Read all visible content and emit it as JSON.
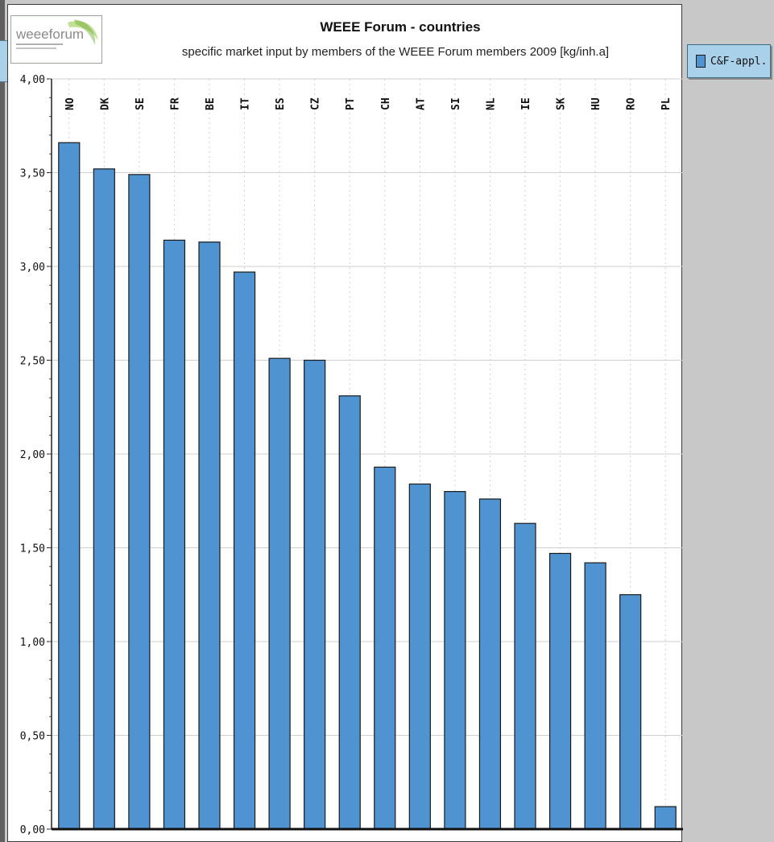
{
  "chart_data": {
    "type": "bar",
    "title": "WEEE Forum - countries",
    "subtitle": "specific market input by members of the WEEE Forum members 2009 [kg/inh.a]",
    "categories": [
      "NO",
      "DK",
      "SE",
      "FR",
      "BE",
      "IT",
      "ES",
      "CZ",
      "PT",
      "CH",
      "AT",
      "SI",
      "NL",
      "IE",
      "SK",
      "HU",
      "RO",
      "PL"
    ],
    "series": [
      {
        "name": "C&F-appl.",
        "values": [
          3.66,
          3.52,
          3.49,
          3.14,
          3.13,
          2.97,
          2.51,
          2.5,
          2.31,
          1.93,
          1.84,
          1.8,
          1.76,
          1.63,
          1.47,
          1.42,
          1.25,
          0.12
        ]
      }
    ],
    "ylim": [
      0,
      4
    ],
    "y_ticks": [
      "0,00",
      "0,50",
      "1,00",
      "1,50",
      "2,00",
      "2,50",
      "3,00",
      "3,50",
      "4,00"
    ],
    "xlabel": "",
    "ylabel": "",
    "grid": true,
    "legend_position": "right",
    "colors": {
      "bar": "#4f93d0",
      "bar_edge": "#1a1a1a",
      "grid": "#cfcfcf",
      "legend_bg": "#a9d2ea"
    }
  },
  "logo": {
    "text": "weeeforum"
  }
}
